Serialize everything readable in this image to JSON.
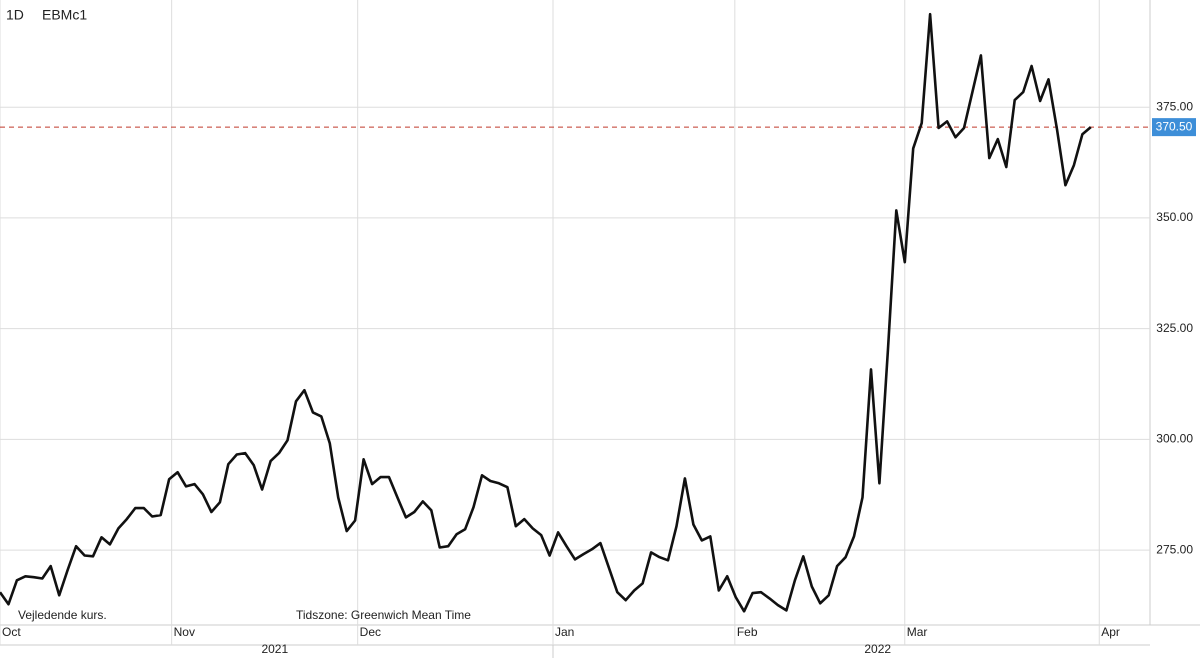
{
  "chart_data": {
    "type": "line",
    "interval": "1D",
    "symbol": "EBMc1",
    "footnote": "Vejledende kurs.",
    "timezone": "Tidszone: Greenwich Mean Time",
    "color": "#111111",
    "values": [
      265.5,
      262.8,
      268.2,
      269.1,
      268.9,
      268.6,
      271.4,
      264.8,
      270.5,
      275.9,
      273.8,
      273.6,
      277.9,
      276.3,
      279.9,
      282.0,
      284.5,
      284.5,
      282.6,
      282.9,
      291.0,
      292.6,
      289.4,
      289.9,
      287.6,
      283.6,
      285.8,
      294.4,
      296.6,
      296.9,
      294.2,
      288.7,
      295.1,
      296.9,
      299.8,
      308.6,
      311.1,
      306.1,
      305.2,
      299.1,
      286.9,
      279.3,
      281.7,
      295.5,
      289.9,
      291.5,
      291.5,
      286.9,
      282.4,
      283.6,
      286.0,
      284.0,
      275.6,
      275.9,
      278.6,
      279.7,
      284.7,
      291.9,
      290.6,
      290.1,
      289.2,
      280.4,
      282.0,
      279.9,
      278.4,
      273.8,
      279.0,
      275.9,
      272.9,
      274.1,
      275.2,
      276.6,
      271.1,
      265.5,
      263.7,
      265.9,
      267.5,
      274.5,
      273.4,
      272.7,
      280.4,
      291.2,
      280.8,
      277.2,
      278.1,
      265.9,
      269.1,
      264.4,
      261.2,
      265.3,
      265.5,
      264.1,
      262.6,
      261.4,
      268.2,
      273.6,
      266.8,
      263.0,
      264.8,
      271.4,
      273.4,
      278.1,
      286.9,
      315.8,
      290.1,
      320.1,
      351.7,
      340.0,
      365.7,
      371.4,
      396.0,
      370.3,
      371.8,
      368.2,
      370.3,
      378.4,
      386.7,
      363.5,
      367.8,
      361.5,
      376.6,
      378.4,
      384.3,
      376.4,
      381.3,
      370.0,
      357.4,
      361.9,
      368.9,
      370.5
    ],
    "xlim": [
      0,
      136
    ],
    "xticks": [
      {
        "value": 0,
        "label": "Oct"
      },
      {
        "value": 20.3,
        "label": "Nov"
      },
      {
        "value": 42.3,
        "label": "Dec"
      },
      {
        "value": 65.4,
        "label": "Jan"
      },
      {
        "value": 86.9,
        "label": "Feb"
      },
      {
        "value": 107,
        "label": "Mar"
      },
      {
        "value": 130,
        "label": "Apr"
      }
    ],
    "year_ticks": [
      {
        "value": 32.5,
        "label": "2021"
      },
      {
        "value": 103.8,
        "label": "2022"
      }
    ],
    "ylim": [
      258.1,
      399.2
    ],
    "yticks": [
      {
        "value": 275,
        "label": "275.00"
      },
      {
        "value": 300,
        "label": "300.00"
      },
      {
        "value": 325,
        "label": "325.00"
      },
      {
        "value": 350,
        "label": "350.00"
      },
      {
        "value": 375,
        "label": "375.00"
      }
    ],
    "last": {
      "value": 370.5,
      "label": "370.50"
    },
    "grid": true
  }
}
